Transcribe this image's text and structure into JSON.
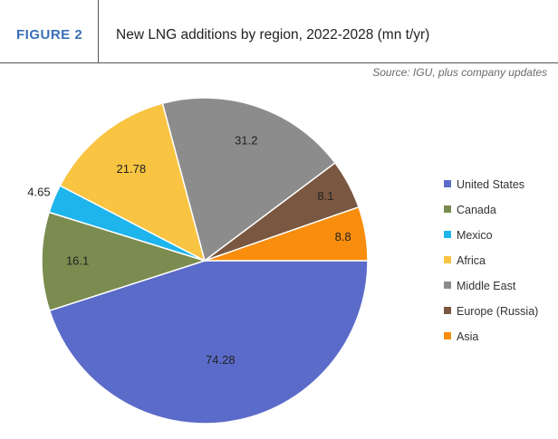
{
  "figure_label": "FIGURE 2",
  "figure_title": "New LNG additions by region, 2022-2028 (mn t/yr)",
  "source": "Source: IGU, plus company updates",
  "chart_data": {
    "type": "pie",
    "title": "New LNG additions by region, 2022-2028 (mn t/yr)",
    "legend_position": "right",
    "slices": [
      {
        "name": "United States",
        "value": 74.28,
        "label": "74.28",
        "color": "#5b6bc9"
      },
      {
        "name": "Canada",
        "value": 16.1,
        "label": "16.1",
        "color": "#7a8c4f"
      },
      {
        "name": "Mexico",
        "value": 4.65,
        "label": "4.65",
        "color": "#1eb4ec"
      },
      {
        "name": "Africa",
        "value": 21.78,
        "label": "21.78",
        "color": "#f8c441"
      },
      {
        "name": "Middle East",
        "value": 31.2,
        "label": "31.2",
        "color": "#8c8c8c"
      },
      {
        "name": "Europe (Russia)",
        "value": 8.1,
        "label": "8.1",
        "color": "#7a5740"
      },
      {
        "name": "Asia",
        "value": 8.8,
        "label": "8.8",
        "color": "#f98d0d"
      }
    ]
  }
}
